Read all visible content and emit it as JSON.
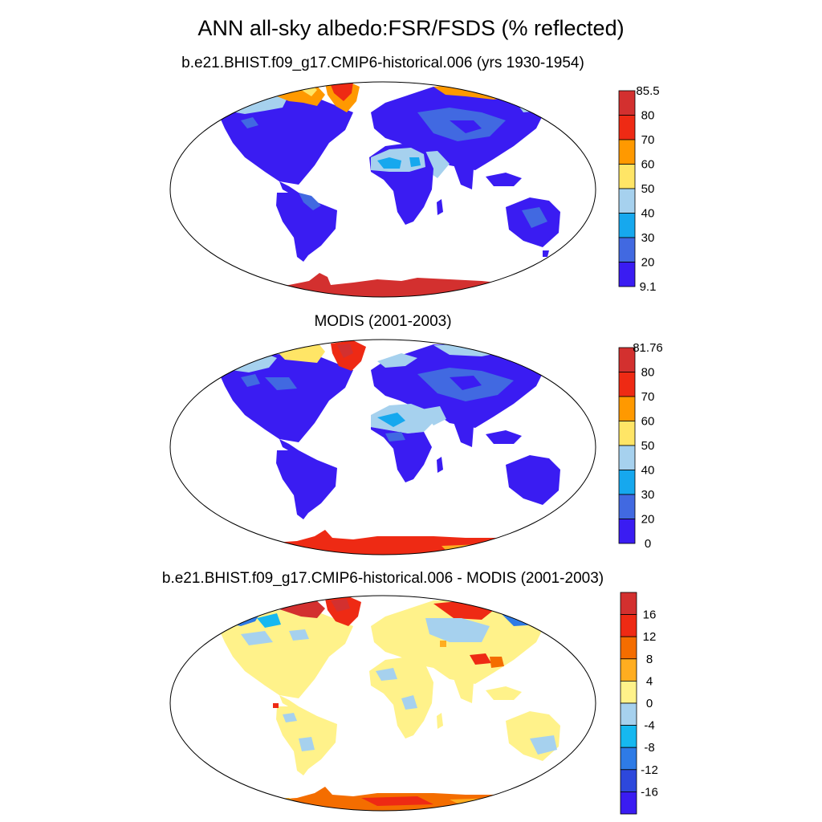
{
  "page": {
    "title": "ANN all-sky albedo:FSR/FSDS (% reflected)"
  },
  "panels": [
    {
      "subtitle": "b.e21.BHIST.f09_g17.CMIP6-historical.006 (yrs 1930-1954)",
      "colorbar": {
        "labels": [
          "85.5",
          "80",
          "70",
          "60",
          "50",
          "40",
          "30",
          "20",
          "9.1"
        ],
        "colors": [
          "#d3302f",
          "#ee2a14",
          "#ff9900",
          "#ffe566",
          "#a6d1ee",
          "#16a8ee",
          "#4169e1",
          "#3a1cf2"
        ]
      }
    },
    {
      "subtitle": "MODIS (2001-2003)",
      "colorbar": {
        "labels": [
          "81.76",
          "80",
          "70",
          "60",
          "50",
          "40",
          "30",
          "20",
          "0"
        ],
        "colors": [
          "#d3302f",
          "#ee2a14",
          "#ff9900",
          "#ffe566",
          "#a6d1ee",
          "#16a8ee",
          "#4169e1",
          "#3a1cf2"
        ]
      }
    },
    {
      "subtitle": "b.e21.BHIST.f09_g17.CMIP6-historical.006 - MODIS (2001-2003)",
      "colorbar": {
        "labels": [
          "16",
          "12",
          "8",
          "4",
          "0",
          "-4",
          "-8",
          "-12",
          "-16"
        ],
        "colors": [
          "#d3302f",
          "#ee2a14",
          "#f46d00",
          "#ffad20",
          "#fff28a",
          "#a6d1ee",
          "#16b8f0",
          "#2e7be6",
          "#2d48dc",
          "#3a1cf2"
        ]
      }
    }
  ]
}
